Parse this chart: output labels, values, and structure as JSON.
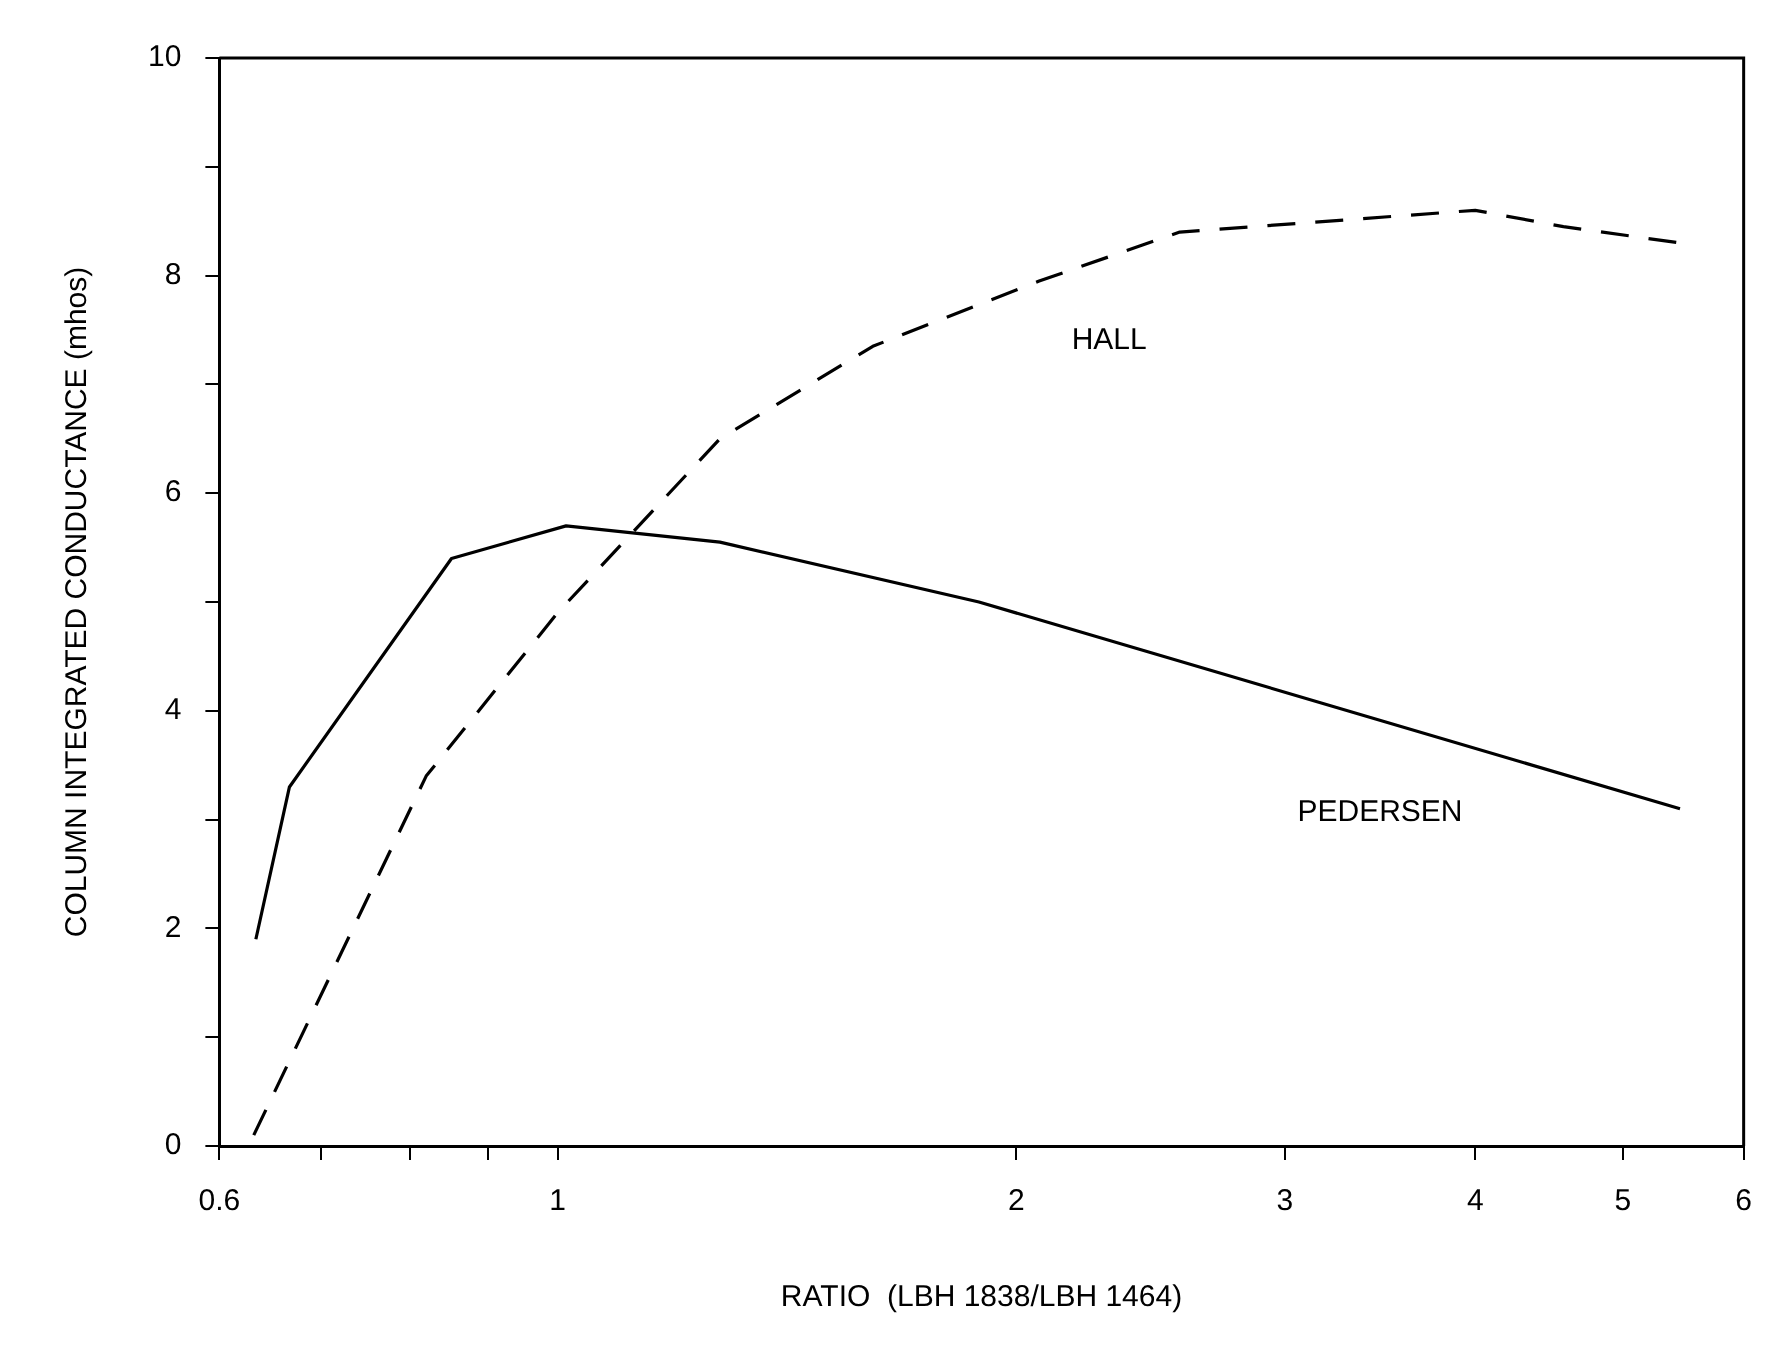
{
  "chart_data": {
    "type": "line",
    "xlabel": "RATIO  (LBH 1838/LBH 1464)",
    "ylabel": "COLUMN INTEGRATED CONDUCTANCE (mhos)",
    "log": "x",
    "grid": false,
    "legend": false,
    "marker": "none",
    "xlim": [
      0.6,
      6
    ],
    "xticks": [
      0.6,
      {
        "value": 0.7,
        "label": null
      },
      {
        "value": 0.8,
        "label": null
      },
      {
        "value": 0.9,
        "label": null
      },
      1,
      2,
      3,
      4,
      5,
      6
    ],
    "ylim": [
      0,
      10
    ],
    "yticks": [
      0,
      {
        "value": 1,
        "label": null
      },
      2,
      {
        "value": 3,
        "label": null
      },
      4,
      {
        "value": 5,
        "label": null
      },
      6,
      {
        "value": 7,
        "label": null
      },
      8,
      {
        "value": 9,
        "label": null
      },
      10
    ],
    "series": [
      {
        "name": "PEDERSEN",
        "color": "#000000",
        "line_style": "solid",
        "x": [
          0.634,
          0.667,
          0.852,
          1.013,
          1.278,
          1.89,
          5.45
        ],
        "values": [
          1.9,
          3.3,
          5.4,
          5.7,
          5.55,
          5.0,
          3.1
        ]
      },
      {
        "name": "HALL",
        "color": "#000000",
        "line_style": "dashed",
        "x": [
          0.632,
          0.82,
          1.0,
          1.278,
          1.61,
          2.07,
          2.56,
          4.0,
          4.57,
          5.45
        ],
        "values": [
          0.1,
          3.4,
          4.9,
          6.5,
          7.35,
          7.95,
          8.4,
          8.6,
          8.45,
          8.3
        ]
      }
    ]
  }
}
